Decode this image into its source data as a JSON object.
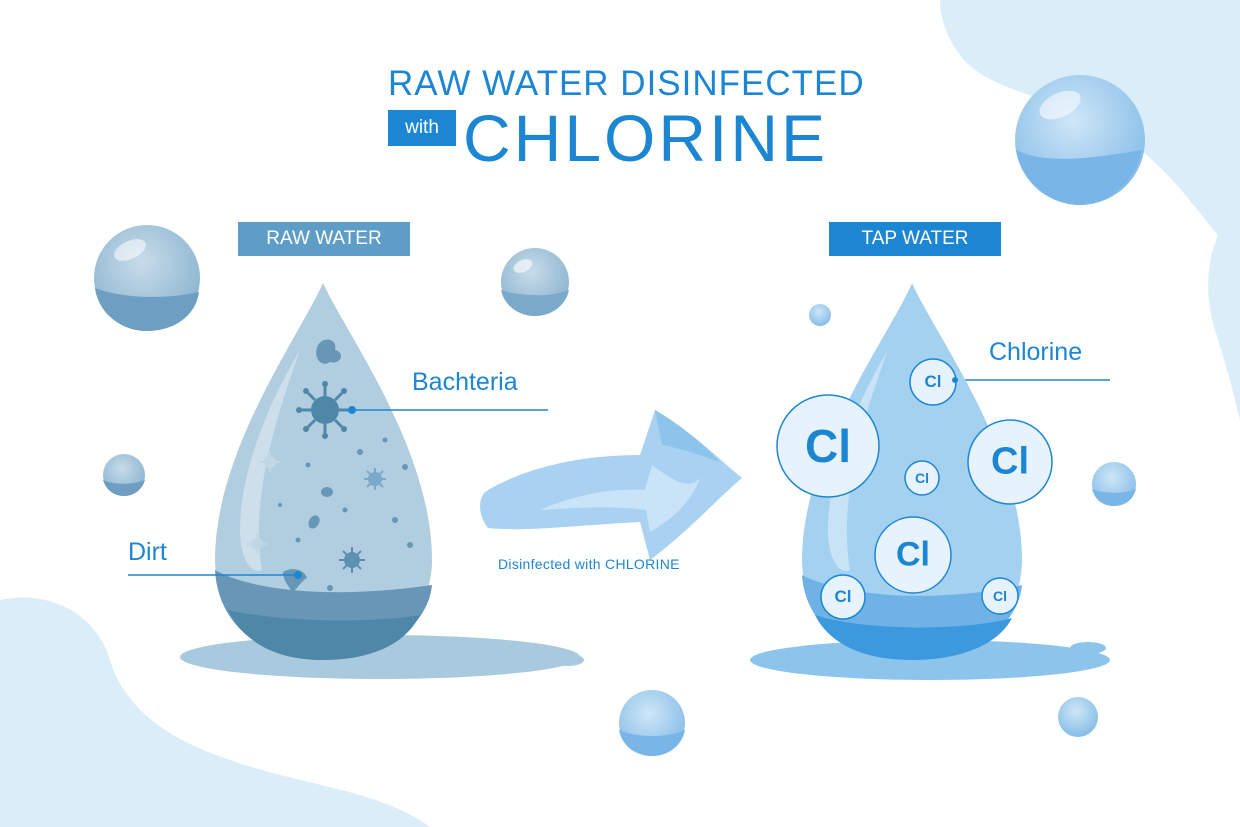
{
  "title": {
    "line1": "RAW WATER DISINFECTED",
    "with": "with",
    "line2": "CHLORINE"
  },
  "labels": {
    "raw_water": "RAW WATER",
    "tap_water": "TAP WATER",
    "bacteria": "Bachteria",
    "dirt": "Dirt",
    "chlorine": "Chlorine",
    "arrow_caption": "Disinfected with CHLORINE"
  },
  "chlorine_symbol": "Cl",
  "colors": {
    "accent": "#1d86d3",
    "raw_tag": "#5e9dc7",
    "raw_drop": "#a9c9de",
    "raw_water_dark": "#4f87a8",
    "tap_drop": "#8cc4ec",
    "tap_water_dark": "#3d99dd",
    "background_blob": "#dcedfa"
  }
}
